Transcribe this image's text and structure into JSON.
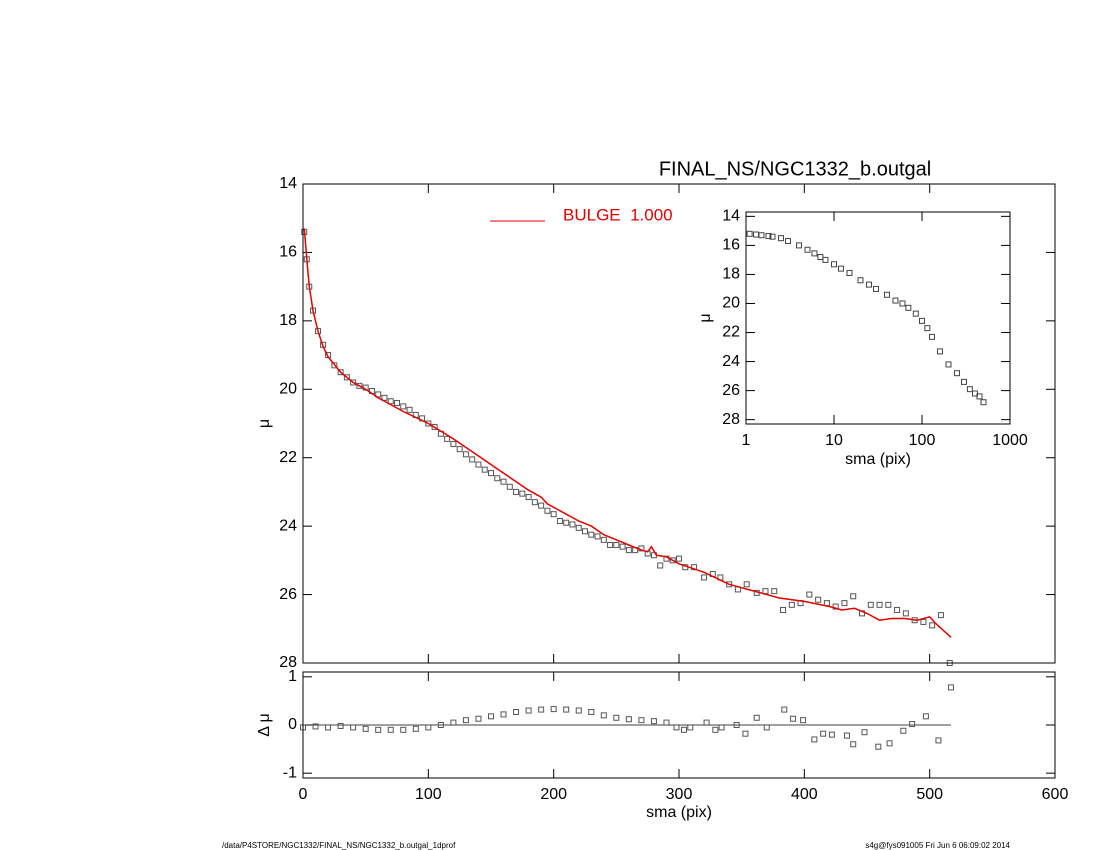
{
  "chart_data": [
    {
      "type": "scatter",
      "title": "FINAL_NS/NGC1332_b.outgal",
      "ylabel": "μ",
      "xlim": [
        0,
        600
      ],
      "ylim": [
        14,
        28
      ],
      "y_inverted": true,
      "legend": "top",
      "xticks": [
        0,
        100,
        200,
        300,
        400,
        500,
        600
      ],
      "yticks": [
        14,
        16,
        18,
        20,
        22,
        24,
        26,
        28
      ],
      "series": [
        {
          "color": "#555555",
          "marker": "square",
          "x": [
            1,
            3,
            5,
            8,
            12,
            16,
            20,
            25,
            30,
            35,
            40,
            45,
            50,
            55,
            60,
            65,
            70,
            75,
            80,
            85,
            90,
            95,
            100,
            105,
            110,
            115,
            120,
            125,
            130,
            135,
            140,
            145,
            150,
            155,
            160,
            165,
            170,
            175,
            180,
            185,
            190,
            195,
            200,
            205,
            210,
            215,
            220,
            225,
            230,
            235,
            240,
            245,
            250,
            255,
            260,
            265,
            270,
            275,
            280,
            285,
            290,
            295,
            300,
            305,
            312,
            320,
            327,
            333,
            340,
            347,
            354,
            362,
            369,
            376,
            383,
            390,
            397,
            404,
            411,
            418,
            425,
            432,
            439,
            446,
            453,
            460,
            467,
            474,
            481,
            488,
            495,
            502,
            509,
            516
          ],
          "values": [
            15.4,
            16.2,
            17.0,
            17.7,
            18.3,
            18.7,
            19.0,
            19.3,
            19.5,
            19.65,
            19.8,
            19.9,
            19.95,
            20.05,
            20.15,
            20.25,
            20.35,
            20.4,
            20.5,
            20.6,
            20.75,
            20.85,
            21.0,
            21.1,
            21.3,
            21.45,
            21.6,
            21.75,
            21.9,
            22.05,
            22.2,
            22.35,
            22.45,
            22.6,
            22.7,
            22.85,
            23.0,
            23.05,
            23.15,
            23.3,
            23.4,
            23.55,
            23.65,
            23.85,
            23.9,
            23.95,
            24.05,
            24.15,
            24.25,
            24.3,
            24.4,
            24.55,
            24.55,
            24.6,
            24.7,
            24.7,
            24.65,
            24.8,
            24.85,
            25.15,
            24.95,
            25.0,
            24.95,
            25.2,
            25.2,
            25.5,
            25.4,
            25.5,
            25.7,
            25.85,
            25.7,
            25.95,
            25.9,
            25.9,
            26.45,
            26.3,
            26.25,
            26.0,
            26.15,
            26.25,
            26.35,
            26.25,
            26.05,
            26.55,
            26.3,
            26.3,
            26.3,
            26.45,
            26.55,
            26.75,
            26.8,
            26.9,
            26.6,
            28.0
          ]
        },
        {
          "name": "BULGE  1.000",
          "color": "#e00000",
          "marker": "line",
          "x": [
            1,
            3,
            5,
            8,
            12,
            16,
            20,
            30,
            40,
            50,
            60,
            80,
            100,
            120,
            140,
            160,
            180,
            190,
            195,
            200,
            210,
            220,
            230,
            240,
            250,
            260,
            270,
            275,
            278,
            282,
            290,
            300,
            320,
            340,
            360,
            380,
            400,
            420,
            430,
            440,
            450,
            460,
            470,
            480,
            490,
            500,
            505,
            517
          ],
          "values": [
            15.3,
            16.2,
            17.0,
            17.7,
            18.3,
            18.75,
            19.05,
            19.5,
            19.8,
            20.0,
            20.25,
            20.65,
            21.0,
            21.45,
            21.95,
            22.45,
            22.95,
            23.15,
            23.35,
            23.45,
            23.65,
            23.85,
            24.0,
            24.25,
            24.4,
            24.55,
            24.7,
            24.75,
            24.6,
            24.85,
            24.9,
            25.1,
            25.35,
            25.7,
            25.9,
            26.1,
            26.2,
            26.35,
            26.45,
            26.4,
            26.55,
            26.75,
            26.7,
            26.7,
            26.75,
            26.65,
            26.85,
            27.25
          ]
        }
      ]
    },
    {
      "type": "scatter",
      "ylabel": "Δ μ",
      "xlabel": "sma (pix)",
      "xlim": [
        0,
        600
      ],
      "ylim": [
        -1.1,
        1.1
      ],
      "xticks": [
        0,
        100,
        200,
        300,
        400,
        500,
        600
      ],
      "yticks": [
        -1,
        0,
        1
      ],
      "series": [
        {
          "color": "#555555",
          "marker": "square",
          "x": [
            0,
            10,
            20,
            30,
            40,
            50,
            60,
            70,
            80,
            90,
            100,
            110,
            120,
            130,
            140,
            150,
            160,
            170,
            180,
            190,
            200,
            210,
            220,
            230,
            240,
            250,
            260,
            270,
            280,
            290,
            298,
            304,
            309,
            322,
            329,
            334,
            346,
            353,
            362,
            370,
            384,
            391,
            399,
            408,
            415,
            422,
            434,
            439,
            448,
            459,
            468,
            479,
            486,
            497,
            507,
            517
          ],
          "values": [
            -0.05,
            -0.03,
            -0.05,
            -0.02,
            -0.05,
            -0.08,
            -0.1,
            -0.1,
            -0.1,
            -0.08,
            -0.05,
            0.0,
            0.05,
            0.1,
            0.13,
            0.18,
            0.22,
            0.27,
            0.3,
            0.32,
            0.33,
            0.32,
            0.3,
            0.27,
            0.2,
            0.15,
            0.12,
            0.1,
            0.08,
            0.05,
            -0.05,
            -0.1,
            -0.05,
            0.05,
            -0.1,
            -0.05,
            0.0,
            -0.18,
            0.15,
            -0.05,
            0.32,
            0.13,
            0.1,
            -0.3,
            -0.18,
            -0.2,
            -0.22,
            -0.4,
            -0.15,
            -0.45,
            -0.38,
            -0.12,
            0.02,
            0.18,
            -0.32,
            0.78
          ]
        }
      ]
    },
    {
      "type": "scatter",
      "ylabel": "μ",
      "xlabel": "sma (pix)",
      "xscale": "log",
      "xlim": [
        1,
        1000
      ],
      "ylim": [
        13.7,
        28.3
      ],
      "y_inverted": true,
      "xticks": [
        1,
        10,
        100,
        1000
      ],
      "yticks": [
        14,
        16,
        18,
        20,
        22,
        24,
        26,
        28
      ],
      "series": [
        {
          "color": "#444444",
          "marker": "square",
          "x": [
            1.1,
            1.3,
            1.5,
            1.8,
            2,
            2.5,
            3,
            4,
            5,
            6,
            7,
            8,
            10,
            12,
            15,
            20,
            25,
            30,
            40,
            50,
            60,
            70,
            85,
            100,
            115,
            130,
            160,
            200,
            250,
            300,
            350,
            400,
            450,
            500
          ],
          "values": [
            15.2,
            15.25,
            15.3,
            15.35,
            15.4,
            15.5,
            15.7,
            16.0,
            16.3,
            16.55,
            16.8,
            17.0,
            17.3,
            17.6,
            17.9,
            18.4,
            18.7,
            19.0,
            19.4,
            19.8,
            20.0,
            20.3,
            20.7,
            21.2,
            21.7,
            22.3,
            23.3,
            24.2,
            24.8,
            25.4,
            25.9,
            26.2,
            26.4,
            26.8
          ]
        }
      ]
    }
  ],
  "footer": {
    "left": "/data/P4STORE/NGC1332/FINAL_NS/NGC1332_b.outgal_1dprof",
    "right": "s4g@fys091005  Fri Jun  6 06:09:02 2014"
  }
}
